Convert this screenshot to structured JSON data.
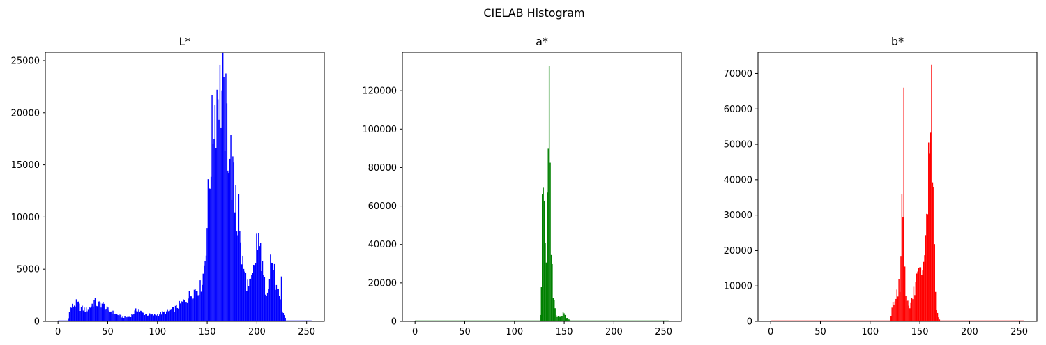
{
  "figure": {
    "title": "CIELAB Histogram"
  },
  "chart_data": [
    {
      "type": "bar",
      "title": "L*",
      "color": "#0000ff",
      "xlabel": "",
      "ylabel": "",
      "xlim": [
        -12.75,
        267.75
      ],
      "ylim": [
        0,
        25800
      ],
      "xticks": [
        0,
        50,
        100,
        150,
        200,
        250
      ],
      "yticks": [
        0,
        5000,
        10000,
        15000,
        20000,
        25000
      ],
      "bins": 256,
      "keypoints": [
        [
          0,
          0
        ],
        [
          9,
          0
        ],
        [
          10,
          400
        ],
        [
          12,
          1300
        ],
        [
          15,
          1500
        ],
        [
          18,
          1700
        ],
        [
          20,
          1600
        ],
        [
          22,
          1300
        ],
        [
          25,
          1200
        ],
        [
          28,
          1100
        ],
        [
          30,
          1200
        ],
        [
          33,
          1500
        ],
        [
          36,
          1900
        ],
        [
          38,
          1700
        ],
        [
          40,
          1600
        ],
        [
          44,
          1700
        ],
        [
          46,
          1500
        ],
        [
          48,
          1200
        ],
        [
          52,
          1000
        ],
        [
          56,
          800
        ],
        [
          60,
          600
        ],
        [
          64,
          450
        ],
        [
          68,
          400
        ],
        [
          72,
          450
        ],
        [
          75,
          700
        ],
        [
          78,
          1000
        ],
        [
          80,
          1200
        ],
        [
          82,
          1000
        ],
        [
          85,
          800
        ],
        [
          90,
          650
        ],
        [
          95,
          600
        ],
        [
          100,
          650
        ],
        [
          105,
          800
        ],
        [
          110,
          900
        ],
        [
          115,
          1100
        ],
        [
          120,
          1400
        ],
        [
          125,
          1800
        ],
        [
          130,
          2200
        ],
        [
          135,
          2800
        ],
        [
          140,
          3200
        ],
        [
          143,
          3200
        ],
        [
          146,
          4500
        ],
        [
          148,
          6300
        ],
        [
          150,
          9500
        ],
        [
          152,
          13000
        ],
        [
          154,
          16500
        ],
        [
          156,
          18500
        ],
        [
          158,
          20500
        ],
        [
          160,
          22000
        ],
        [
          162,
          23500
        ],
        [
          164,
          22000
        ],
        [
          166,
          21500
        ],
        [
          168,
          20000
        ],
        [
          170,
          18500
        ],
        [
          172,
          17000
        ],
        [
          174,
          15500
        ],
        [
          176,
          13500
        ],
        [
          178,
          11500
        ],
        [
          180,
          10000
        ],
        [
          182,
          8500
        ],
        [
          184,
          7000
        ],
        [
          186,
          5500
        ],
        [
          188,
          4500
        ],
        [
          190,
          3800
        ],
        [
          192,
          3200
        ],
        [
          194,
          3500
        ],
        [
          196,
          4200
        ],
        [
          198,
          5200
        ],
        [
          200,
          6600
        ],
        [
          202,
          7000
        ],
        [
          204,
          6000
        ],
        [
          206,
          4800
        ],
        [
          208,
          3500
        ],
        [
          210,
          3000
        ],
        [
          212,
          4000
        ],
        [
          214,
          5200
        ],
        [
          216,
          5800
        ],
        [
          218,
          4500
        ],
        [
          220,
          3000
        ],
        [
          222,
          2500
        ],
        [
          224,
          1800
        ],
        [
          226,
          1000
        ],
        [
          228,
          600
        ],
        [
          229,
          300
        ],
        [
          230,
          0
        ],
        [
          255,
          0
        ]
      ],
      "spikes": [
        [
          157,
          17500
        ],
        [
          163,
          24600
        ],
        [
          167,
          23400
        ],
        [
          170,
          20900
        ],
        [
          179,
          13100
        ],
        [
          182,
          12200
        ],
        [
          200,
          8400
        ],
        [
          204,
          7500
        ],
        [
          214,
          6400
        ],
        [
          225,
          4300
        ]
      ]
    },
    {
      "type": "bar",
      "title": "a*",
      "color": "#008000",
      "xlabel": "",
      "ylabel": "",
      "xlim": [
        -12.75,
        267.75
      ],
      "ylim": [
        0,
        140000
      ],
      "xticks": [
        0,
        50,
        100,
        150,
        200,
        250
      ],
      "yticks": [
        0,
        20000,
        40000,
        60000,
        80000,
        100000,
        120000
      ],
      "bins": 256,
      "keypoints": [
        [
          0,
          0
        ],
        [
          125,
          0
        ],
        [
          126,
          3000
        ],
        [
          127,
          15000
        ],
        [
          128,
          45000
        ],
        [
          129,
          62000
        ],
        [
          130,
          55000
        ],
        [
          131,
          40000
        ],
        [
          132,
          35000
        ],
        [
          133,
          45000
        ],
        [
          134,
          80000
        ],
        [
          135,
          110000
        ],
        [
          136,
          75000
        ],
        [
          137,
          32000
        ],
        [
          138,
          28000
        ],
        [
          139,
          15000
        ],
        [
          140,
          9000
        ],
        [
          141,
          6000
        ],
        [
          142,
          3500
        ],
        [
          143,
          2500
        ],
        [
          145,
          2200
        ],
        [
          147,
          3000
        ],
        [
          149,
          4000
        ],
        [
          150,
          3500
        ],
        [
          152,
          2000
        ],
        [
          154,
          1200
        ],
        [
          156,
          500
        ],
        [
          158,
          0
        ],
        [
          255,
          0
        ]
      ],
      "spikes": [
        [
          128,
          66000
        ],
        [
          129,
          69500
        ],
        [
          133,
          67000
        ],
        [
          135,
          133000
        ],
        [
          136,
          82500
        ]
      ]
    },
    {
      "type": "bar",
      "title": "b*",
      "color": "#ff0000",
      "xlabel": "",
      "ylabel": "",
      "xlim": [
        -12.75,
        267.75
      ],
      "ylim": [
        0,
        76000
      ],
      "xticks": [
        0,
        50,
        100,
        150,
        200,
        250
      ],
      "yticks": [
        0,
        10000,
        20000,
        30000,
        40000,
        50000,
        60000,
        70000
      ],
      "bins": 256,
      "keypoints": [
        [
          0,
          0
        ],
        [
          120,
          0
        ],
        [
          121,
          1500
        ],
        [
          122,
          3500
        ],
        [
          124,
          6000
        ],
        [
          126,
          8000
        ],
        [
          128,
          9000
        ],
        [
          130,
          11000
        ],
        [
          131,
          15000
        ],
        [
          132,
          30000
        ],
        [
          133,
          36000
        ],
        [
          134,
          40000
        ],
        [
          135,
          18000
        ],
        [
          136,
          9000
        ],
        [
          138,
          5000
        ],
        [
          140,
          4000
        ],
        [
          142,
          6000
        ],
        [
          144,
          8000
        ],
        [
          146,
          10000
        ],
        [
          148,
          12000
        ],
        [
          150,
          12500
        ],
        [
          152,
          12000
        ],
        [
          154,
          14000
        ],
        [
          156,
          20000
        ],
        [
          157,
          28000
        ],
        [
          158,
          35000
        ],
        [
          159,
          45000
        ],
        [
          160,
          50000
        ],
        [
          161,
          55000
        ],
        [
          162,
          60000
        ],
        [
          163,
          45000
        ],
        [
          164,
          38000
        ],
        [
          165,
          20000
        ],
        [
          166,
          8000
        ],
        [
          167,
          4000
        ],
        [
          168,
          2000
        ],
        [
          170,
          500
        ],
        [
          172,
          0
        ],
        [
          255,
          0
        ]
      ],
      "spikes": [
        [
          132,
          36000
        ],
        [
          134,
          66000
        ],
        [
          159,
          50500
        ],
        [
          162,
          72500
        ],
        [
          164,
          38000
        ]
      ]
    }
  ]
}
